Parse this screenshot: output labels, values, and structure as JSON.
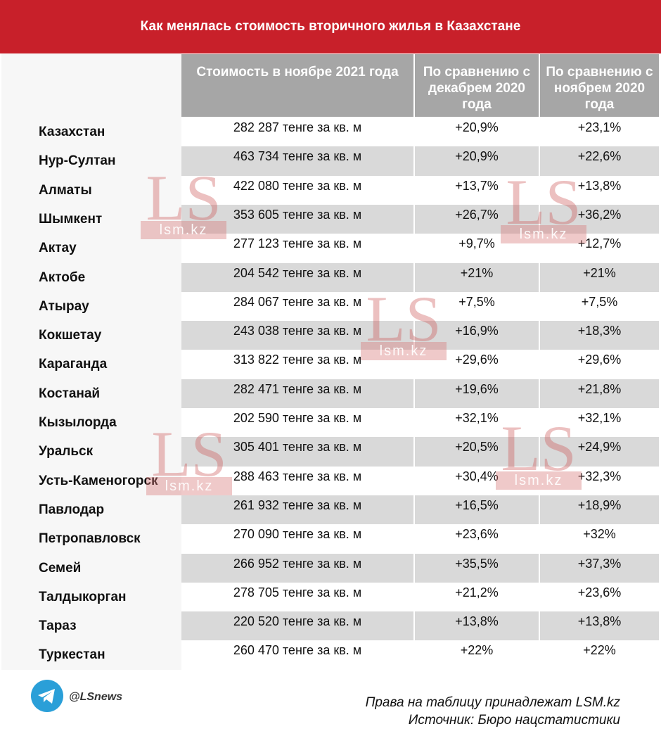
{
  "header": {
    "title": "Как менялась стоимость вторичного жилья в Казахстане"
  },
  "table": {
    "columns": [
      "Стоимость в ноябре 2021 года",
      "По сравнению с декабрем 2020 года",
      "По сравнению с ноябрем 2020 года"
    ],
    "rows": [
      [
        "Казахстан",
        "282 287 тенге за кв. м",
        "+20,9%",
        "+23,1%"
      ],
      [
        "Нур-Султан",
        "463 734 тенге за кв. м",
        "+20,9%",
        "+22,6%"
      ],
      [
        "Алматы",
        "422 080 тенге за кв. м",
        "+13,7%",
        "+13,8%"
      ],
      [
        "Шымкент",
        "353 605 тенге за кв. м",
        "+26,7%",
        "+36,2%"
      ],
      [
        "Актау",
        "277 123 тенге за кв. м",
        "+9,7%",
        "+12,7%"
      ],
      [
        "Актобе",
        "204 542 тенге за кв. м",
        "+21%",
        "+21%"
      ],
      [
        "Атырау",
        "284 067 тенге за кв. м",
        "+7,5%",
        "+7,5%"
      ],
      [
        "Кокшетау",
        "243 038 тенге за кв. м",
        "+16,9%",
        "+18,3%"
      ],
      [
        "Караганда",
        "313 822 тенге за кв. м",
        "+29,6%",
        "+29,6%"
      ],
      [
        "Костанай",
        "282 471 тенге за кв. м",
        "+19,6%",
        "+21,8%"
      ],
      [
        "Кызылорда",
        "202 590 тенге за кв. м",
        "+32,1%",
        "+32,1%"
      ],
      [
        "Уральск",
        "305 401 тенге за кв. м",
        "+20,5%",
        "+24,9%"
      ],
      [
        "Усть-Каменогорск",
        "288 463 тенге за кв. м",
        "+30,4%",
        "+32,3%"
      ],
      [
        "Павлодар",
        "261 932 тенге за кв. м",
        "+16,5%",
        "+18,9%"
      ],
      [
        "Петропавловск",
        "270 090 тенге за кв. м",
        "+23,6%",
        "+32%"
      ],
      [
        "Семей",
        "266 952 тенге за кв. м",
        "+35,5%",
        "+37,3%"
      ],
      [
        "Талдыкорган",
        "278 705 тенге за кв. м",
        "+21,2%",
        "+23,6%"
      ],
      [
        "Тараз",
        "220 520 тенге за кв. м",
        "+13,8%",
        "+13,8%"
      ],
      [
        "Туркестан",
        "260 470 тенге за кв. м",
        "+22%",
        "+22%"
      ]
    ]
  },
  "watermark": {
    "logo": "LS",
    "site": "lsm.kz"
  },
  "footer": {
    "handle": "@LSnews",
    "rights": "Права на таблицу принадлежат LSM.kz",
    "source": "Источник: Бюро нацстатистики"
  }
}
